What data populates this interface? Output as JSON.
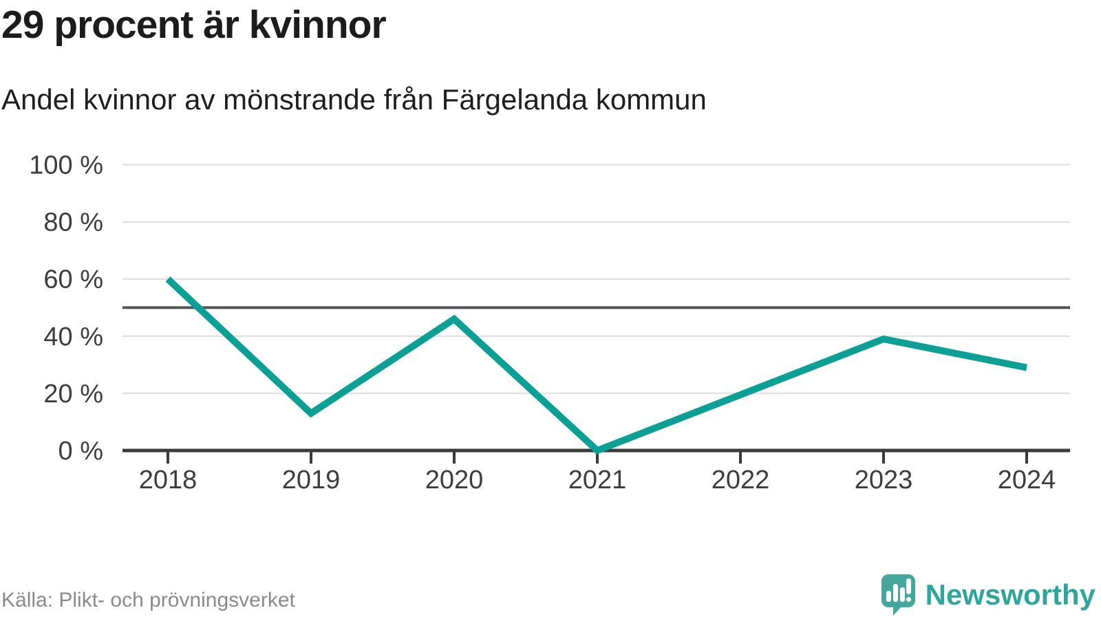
{
  "header": {
    "title": "29 procent är kvinnor",
    "subtitle": "Andel kvinnor av mönstrande från Färgelanda kommun"
  },
  "footer": {
    "source": "Källa: Plikt- och prövningsverket",
    "brand": "Newsworthy"
  },
  "colors": {
    "line": "#0ba095",
    "reference_line": "#55565b",
    "grid": "#e3e3e3",
    "axis": "#3a3a3a",
    "tick_label": "#3d3d3d",
    "title_text": "#1c1c1c",
    "muted_text": "#8a8a8a",
    "brand_teal": "#44a79b",
    "brand_text": "#2fa69b"
  },
  "chart_data": {
    "type": "line",
    "title": "29 procent är kvinnor",
    "subtitle": "Andel kvinnor av mönstrande från Färgelanda kommun",
    "x": [
      2018,
      2019,
      2020,
      2021,
      2022,
      2023,
      2024
    ],
    "series": [
      {
        "name": "Andel kvinnor av mönstrande",
        "values": [
          60,
          13,
          46,
          0,
          null,
          39,
          29
        ]
      }
    ],
    "unit": "%",
    "ylim": [
      0,
      100
    ],
    "yticks": [
      0,
      20,
      40,
      60,
      80,
      100
    ],
    "ytick_suffix": " %",
    "reference_line": 50,
    "grid": "horizontal",
    "legend": "none"
  }
}
